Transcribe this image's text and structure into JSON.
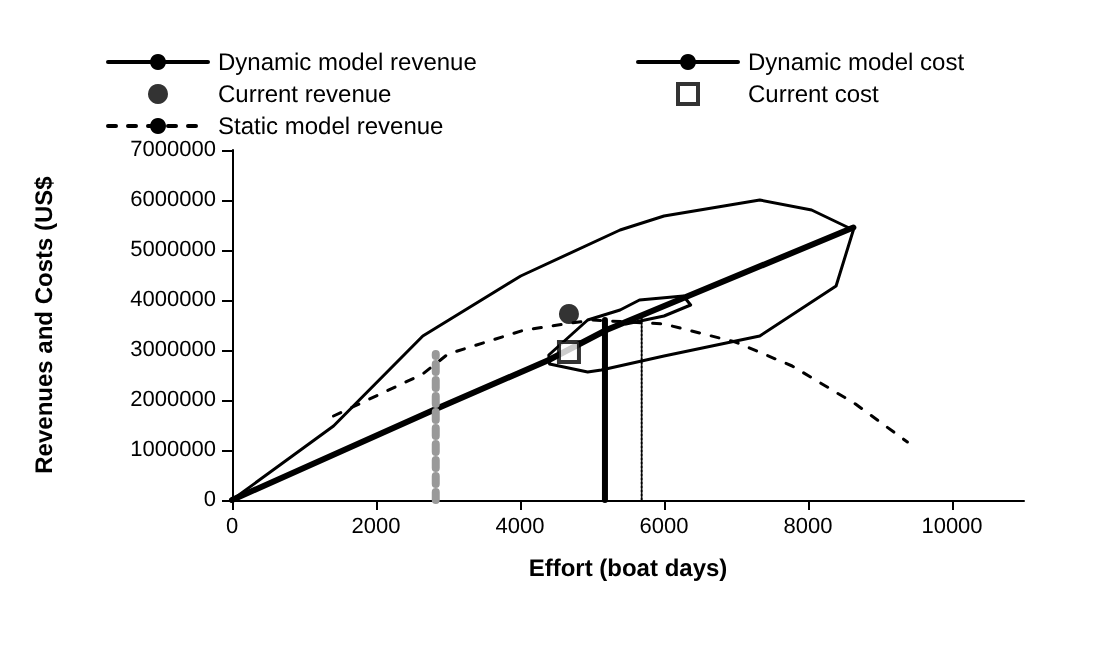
{
  "chart_data": {
    "type": "line",
    "xlabel": "Effort (boat days)",
    "ylabel": "Revenues and Costs (US$",
    "xlim": [
      0,
      11000
    ],
    "xticks": [
      0,
      2000,
      4000,
      6000,
      8000,
      10000
    ],
    "ylim": [
      0,
      7000000
    ],
    "yticks": [
      0,
      1000000,
      2000000,
      3000000,
      4000000,
      5000000,
      6000000,
      7000000
    ],
    "grid": false,
    "legend": "top",
    "marker": "none",
    "series": [
      {
        "name": "Dynamic model revenue",
        "color": "#000000",
        "line_style": "solid",
        "x": [
          0,
          1410,
          2650,
          4010,
          5390,
          6000,
          7330,
          8050,
          8630,
          8390,
          7330,
          6000,
          5130,
          4940,
          4410,
          4400,
          4940,
          5390,
          5660,
          6270,
          6370,
          6000,
          5470
        ],
        "values": [
          0,
          1480000,
          3280000,
          4480000,
          5400000,
          5680000,
          6000000,
          5800000,
          5400000,
          4280000,
          3280000,
          2880000,
          2600000,
          2560000,
          2720000,
          2900000,
          3600000,
          3800000,
          4000000,
          4080000,
          3900000,
          3680000,
          3520000
        ]
      },
      {
        "name": "Dynamic model cost",
        "color": "#000000",
        "line_style": "solid",
        "x": [
          0,
          2800,
          4400,
          5200,
          8630
        ],
        "values": [
          0,
          1800000,
          2800000,
          3400000,
          5450000
        ]
      },
      {
        "name": "Current revenue",
        "type": "scatter",
        "marker": "circle",
        "color": "#000000",
        "x": [
          4680
        ],
        "values": [
          3720000
        ]
      },
      {
        "name": "Current cost",
        "type": "scatter",
        "marker": "square",
        "color": "#000000",
        "x": [
          4680
        ],
        "values": [
          2960000
        ]
      },
      {
        "name": "Static model revenue",
        "color": "#000000",
        "line_style": "dashed",
        "x": [
          1410,
          2650,
          3000,
          4060,
          5000,
          6000,
          6990,
          7780,
          8660,
          9380
        ],
        "values": [
          1680000,
          2520000,
          2920000,
          3400000,
          3600000,
          3520000,
          3160000,
          2680000,
          1920000,
          1160000
        ]
      },
      {
        "color": "#999999",
        "line_style": "dotted",
        "x": [
          2830,
          2830
        ],
        "values": [
          0,
          2920000
        ]
      },
      {
        "color": "#000000",
        "line_style": "solid",
        "x": [
          5180,
          5180
        ],
        "values": [
          0,
          3600000
        ]
      },
      {
        "color": "#000000",
        "line_style": "dotted",
        "x": [
          5690,
          5690
        ],
        "values": [
          0,
          3680000
        ]
      }
    ]
  }
}
